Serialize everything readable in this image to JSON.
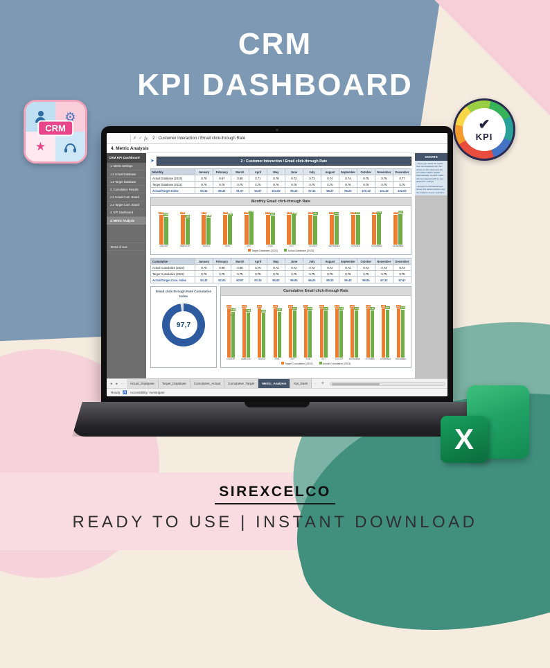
{
  "page": {
    "title_line1": "CRM",
    "title_line2": "KPI DASHBOARD",
    "footer_brand": "SIREXCELCO",
    "footer_tagline": "READY TO USE | INSTANT DOWNLOAD",
    "excel_logo_letter": "X"
  },
  "badges": {
    "crm_label": "CRM",
    "kpi_label": "KPI",
    "kpi_check": "✔"
  },
  "colors": {
    "target_series": "#ED7D31",
    "actual_series": "#70AD47",
    "banner": "#44546A",
    "donut_fill": "#2E5B9F",
    "donut_track": "#D9DEE8",
    "excel_green": "#21A366"
  },
  "excel": {
    "icons": {
      "cancel": "✗",
      "enter": "✓",
      "fx": "fx",
      "arrow": "➤",
      "tabs_prev": "◄",
      "tabs_next": "►",
      "tabs_more": "⋯",
      "add_sheet": "+",
      "accessibility": "♿"
    },
    "formula_bar": {
      "value": "2 : Customer Interaction / Email click-through Rate"
    },
    "section_title": "4. Metric Analysis",
    "sidebar": {
      "header": "CRM KPI Dashboard",
      "items": [
        "1. Metric Settings",
        "1.1 Actual Database",
        "1.2 Target Database",
        "2. Cumulative Results",
        "2.1 Actual Cum. Board",
        "2.2 Target Cum. Board",
        "3. KPI Dashboard",
        "4. Metric Analysis"
      ],
      "active": "4. Metric Analysis",
      "footer_item": "Terms of Use"
    },
    "banner": "2 : Customer Interaction / Email click-through Rate",
    "monthly_table": {
      "corner": "Monthly",
      "months": [
        "January",
        "February",
        "March",
        "April",
        "May",
        "June",
        "July",
        "August",
        "September",
        "October",
        "November",
        "December"
      ],
      "rows": [
        {
          "label": "Actual Database (2023)",
          "style": "normal",
          "values": [
            "0.70",
            "0.67",
            "0.68",
            "0.71",
            "0.78",
            "0.72",
            "0.73",
            "0.74",
            "0.74",
            "0.75",
            "0.76",
            "0.77"
          ]
        },
        {
          "label": "Target Database (2022)",
          "style": "normal",
          "values": [
            "0.75",
            "0.75",
            "0.75",
            "0.75",
            "0.75",
            "0.75",
            "0.75",
            "0.75",
            "0.75",
            "0.75",
            "0.75",
            "0.75"
          ]
        },
        {
          "label": "Actual/Target Index",
          "style": "index",
          "values": [
            "93.33",
            "89.33",
            "91.07",
            "94.67",
            "104.00",
            "96.40",
            "97.33",
            "98.27",
            "99.20",
            "100.13",
            "101.33",
            "102.00"
          ]
        }
      ]
    },
    "cumulative_table": {
      "corner": "Cumulative",
      "months": [
        "January",
        "February",
        "March",
        "April",
        "May",
        "June",
        "July",
        "August",
        "September",
        "October",
        "November",
        "December"
      ],
      "rows": [
        {
          "label": "Actual Cumulative (2023)",
          "style": "normal",
          "values": [
            "0.70",
            "0.69",
            "0.68",
            "0.70",
            "0.72",
            "0.72",
            "0.72",
            "0.72",
            "0.72",
            "0.72",
            "0.73",
            "0.73"
          ]
        },
        {
          "label": "Target Cumulative (2022)",
          "style": "normal",
          "values": [
            "0.75",
            "0.75",
            "0.75",
            "0.75",
            "0.75",
            "0.75",
            "0.75",
            "0.75",
            "0.75",
            "0.75",
            "0.75",
            "0.75"
          ]
        },
        {
          "label": "Actual/Target Cum. Index",
          "style": "index",
          "values": [
            "93.33",
            "92.00",
            "90.67",
            "93.33",
            "95.60",
            "95.90",
            "96.00",
            "96.20",
            "96.40",
            "96.80",
            "97.33",
            "97.67"
          ]
        }
      ]
    },
    "donut": {
      "title": "Email click-through Rate Cumulative Index",
      "display": "97,7"
    },
    "charts_panel": {
      "title": "CHARTS",
      "notes": [
        "Once you select the metric from the dropdown list, the charts on this sheet and the cumulative tables update automatically, so each metric can be analyzed with its own distinctive settings.",
        "Except the KPI Dashboard sheet, this sheet contains only the analysis of your selection."
      ]
    },
    "tabs": {
      "sheets": [
        {
          "label": "Actual_Database",
          "active": false
        },
        {
          "label": "Target_Database",
          "active": false
        },
        {
          "label": "Cumulative_Actual",
          "active": false
        },
        {
          "label": "Cumulative_Target",
          "active": false
        },
        {
          "label": "Metric_Analysis",
          "active": true
        },
        {
          "label": "Kpi_Dash",
          "active": false
        }
      ]
    },
    "status": {
      "ready": "Ready",
      "accessibility": "Accessibility: Investigate"
    }
  },
  "chart_data": [
    {
      "type": "bar",
      "title": "Monthly Email click-through Rate",
      "categories": [
        "JANUARY",
        "FEBRUARY",
        "MARCH",
        "APRIL",
        "MAY",
        "JUNE",
        "JULY",
        "AUGUST",
        "SEPTEMBER",
        "OCTOBER",
        "NOVEMBER",
        "DECEMBER"
      ],
      "series": [
        {
          "name": "Target Database (2022)",
          "color": "#ED7D31",
          "values": [
            0.75,
            0.75,
            0.75,
            0.75,
            0.75,
            0.75,
            0.75,
            0.75,
            0.75,
            0.75,
            0.75,
            0.75
          ]
        },
        {
          "name": "Actual Database (2023)",
          "color": "#70AD47",
          "values": [
            0.7,
            0.67,
            0.68,
            0.71,
            0.78,
            0.72,
            0.73,
            0.74,
            0.74,
            0.75,
            0.76,
            0.77
          ]
        }
      ],
      "ylim": [
        0,
        0.9
      ],
      "grid": false,
      "legend_position": "bottom"
    },
    {
      "type": "bar",
      "title": "Cumulative Email click-through Rate",
      "categories": [
        "JANUARY",
        "FEBRUARY",
        "MARCH",
        "APRIL",
        "MAY",
        "JUNE",
        "JULY",
        "AUGUST",
        "SEPTEMBER",
        "OCTOBER",
        "NOVEMBER",
        "DECEMBER"
      ],
      "series": [
        {
          "name": "Target Cumulative (2022)",
          "color": "#ED7D31",
          "values": [
            0.75,
            0.75,
            0.75,
            0.75,
            0.75,
            0.75,
            0.75,
            0.75,
            0.75,
            0.75,
            0.75,
            0.75
          ]
        },
        {
          "name": "Actual Cumulative (2023)",
          "color": "#70AD47",
          "values": [
            0.7,
            0.69,
            0.68,
            0.7,
            0.72,
            0.72,
            0.72,
            0.72,
            0.72,
            0.72,
            0.73,
            0.73
          ]
        }
      ],
      "ylim": [
        0,
        0.9
      ],
      "grid": false,
      "legend_position": "bottom"
    },
    {
      "type": "pie",
      "variant": "donut",
      "title": "Email click-through Rate Cumulative Index",
      "value": 97.7,
      "max": 100,
      "display": "97,7",
      "fill": "#2E5B9F",
      "track": "#D9DEE8"
    }
  ]
}
